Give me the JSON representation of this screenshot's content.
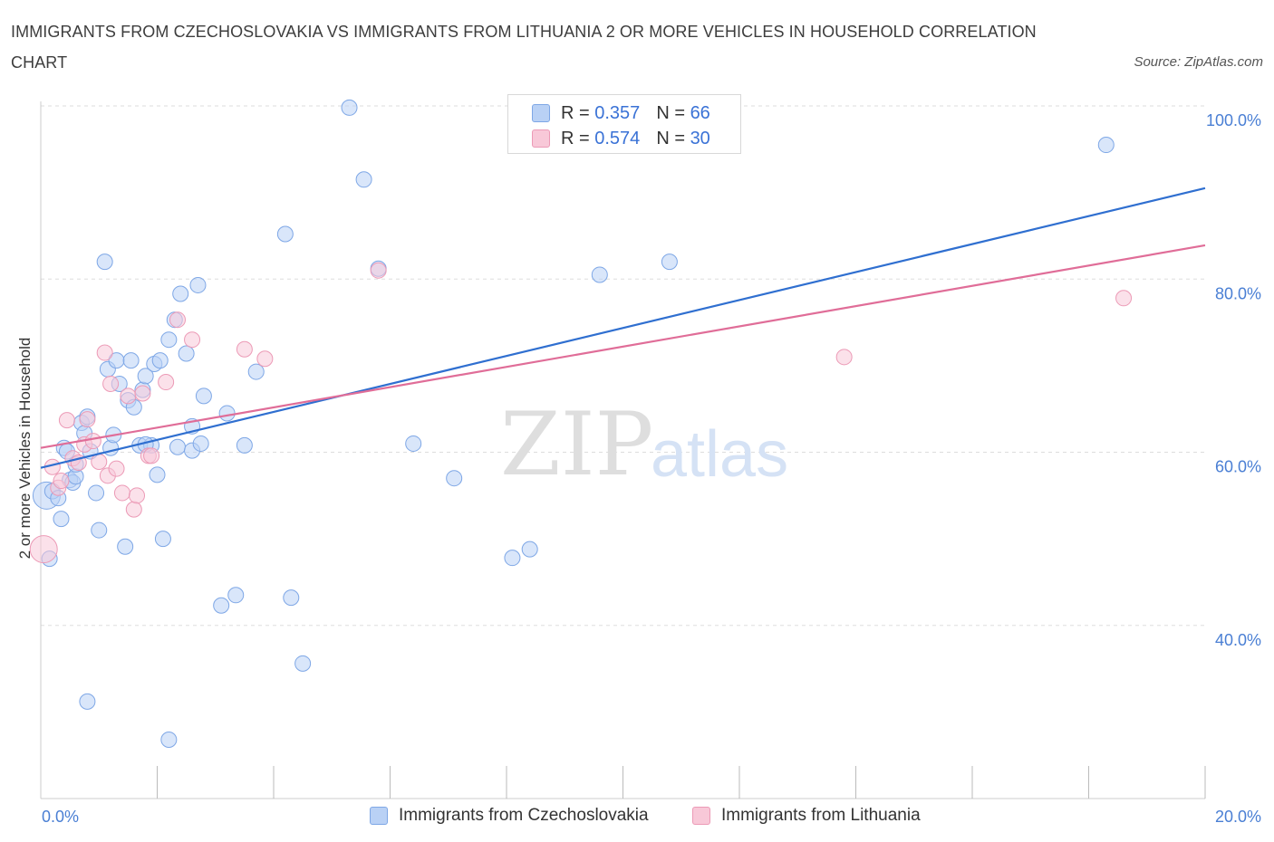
{
  "header": {
    "title": "IMMIGRANTS FROM CZECHOSLOVAKIA VS IMMIGRANTS FROM LITHUANIA 2 OR MORE VEHICLES IN HOUSEHOLD CORRELATION CHART",
    "source": "Source: ZipAtlas.com"
  },
  "legend": {
    "r_label": "R =",
    "n_label": "N =",
    "czech": {
      "r": "0.357",
      "n": "66",
      "name": "Immigrants from Czechoslovakia"
    },
    "lith": {
      "r": "0.574",
      "n": "30",
      "name": "Immigrants from Lithuania"
    }
  },
  "watermark": {
    "zip": "ZIP",
    "atlas": "atlas"
  },
  "colors": {
    "czech_fill": "#b9d1f5",
    "czech_stroke": "#7ea7e6",
    "czech_line": "#2f6fd0",
    "lith_fill": "#f8c8d8",
    "lith_stroke": "#ec9ab6",
    "lith_line": "#e06d98",
    "axis_text": "#4a7fd4",
    "grid": "#dddddd"
  },
  "chart_data": {
    "type": "scatter",
    "title": "IMMIGRANTS FROM CZECHOSLOVAKIA VS IMMIGRANTS FROM LITHUANIA 2 OR MORE VEHICLES IN HOUSEHOLD CORRELATION CHART",
    "xlabel": "",
    "ylabel": "2 or more Vehicles in Household",
    "xlim": [
      0,
      20
    ],
    "ylim": [
      20,
      100
    ],
    "x_tick_labels": [
      "0.0%",
      "20.0%"
    ],
    "y_ticks": [
      40,
      60,
      80,
      100
    ],
    "y_tick_labels": [
      "40.0%",
      "60.0%",
      "80.0%",
      "100.0%"
    ],
    "legend_position": "top-center",
    "series": [
      {
        "name": "Immigrants from Czechoslovakia",
        "r": 0.357,
        "n": 66,
        "trend": {
          "x": [
            0,
            20
          ],
          "y": [
            58.2,
            90.5
          ]
        },
        "points": [
          [
            0.1,
            55.0
          ],
          [
            0.15,
            47.7
          ],
          [
            0.2,
            55.5
          ],
          [
            0.3,
            54.7
          ],
          [
            0.35,
            52.3
          ],
          [
            0.4,
            60.5
          ],
          [
            0.45,
            60.1
          ],
          [
            0.5,
            56.8
          ],
          [
            0.55,
            56.5
          ],
          [
            0.6,
            57.2
          ],
          [
            0.7,
            63.4
          ],
          [
            0.75,
            62.2
          ],
          [
            0.8,
            64.1
          ],
          [
            0.85,
            60.1
          ],
          [
            1.0,
            51.0
          ],
          [
            1.1,
            82.0
          ],
          [
            1.15,
            69.6
          ],
          [
            1.2,
            60.5
          ],
          [
            1.25,
            62.0
          ],
          [
            1.3,
            70.6
          ],
          [
            1.35,
            67.9
          ],
          [
            1.45,
            49.1
          ],
          [
            1.5,
            66.0
          ],
          [
            1.55,
            70.6
          ],
          [
            1.6,
            65.2
          ],
          [
            1.7,
            60.8
          ],
          [
            1.75,
            67.2
          ],
          [
            1.8,
            68.8
          ],
          [
            1.9,
            60.8
          ],
          [
            1.95,
            70.2
          ],
          [
            2.0,
            57.4
          ],
          [
            2.05,
            70.6
          ],
          [
            2.1,
            50.0
          ],
          [
            2.2,
            73.0
          ],
          [
            2.3,
            75.3
          ],
          [
            2.35,
            60.6
          ],
          [
            2.4,
            78.3
          ],
          [
            2.5,
            71.4
          ],
          [
            2.6,
            60.2
          ],
          [
            2.6,
            63.0
          ],
          [
            2.7,
            79.3
          ],
          [
            2.75,
            61.0
          ],
          [
            2.8,
            66.5
          ],
          [
            3.1,
            42.3
          ],
          [
            3.2,
            64.5
          ],
          [
            3.35,
            43.5
          ],
          [
            3.5,
            60.8
          ],
          [
            3.7,
            69.3
          ],
          [
            4.2,
            85.2
          ],
          [
            4.3,
            43.2
          ],
          [
            4.5,
            35.6
          ],
          [
            5.3,
            99.8
          ],
          [
            5.55,
            91.5
          ],
          [
            5.8,
            81.2
          ],
          [
            6.4,
            61.0
          ],
          [
            7.1,
            57.0
          ],
          [
            8.1,
            47.8
          ],
          [
            8.4,
            48.8
          ],
          [
            9.6,
            80.5
          ],
          [
            10.8,
            82.0
          ],
          [
            18.3,
            95.5
          ],
          [
            0.6,
            58.6
          ],
          [
            0.8,
            31.2
          ],
          [
            2.2,
            26.8
          ],
          [
            0.95,
            55.3
          ],
          [
            1.8,
            60.9
          ]
        ]
      },
      {
        "name": "Immigrants from Lithuania",
        "r": 0.574,
        "n": 30,
        "trend": {
          "x": [
            0,
            20
          ],
          "y": [
            60.5,
            83.9
          ]
        },
        "points": [
          [
            0.05,
            48.8
          ],
          [
            0.2,
            58.3
          ],
          [
            0.3,
            55.9
          ],
          [
            0.35,
            56.7
          ],
          [
            0.45,
            63.7
          ],
          [
            0.55,
            59.3
          ],
          [
            0.65,
            58.8
          ],
          [
            0.75,
            60.9
          ],
          [
            0.8,
            63.8
          ],
          [
            0.9,
            61.3
          ],
          [
            1.0,
            58.9
          ],
          [
            1.1,
            71.5
          ],
          [
            1.15,
            57.3
          ],
          [
            1.2,
            67.9
          ],
          [
            1.3,
            58.1
          ],
          [
            1.4,
            55.3
          ],
          [
            1.5,
            66.5
          ],
          [
            1.6,
            53.4
          ],
          [
            1.65,
            55.0
          ],
          [
            1.75,
            66.8
          ],
          [
            1.85,
            59.6
          ],
          [
            1.9,
            59.6
          ],
          [
            2.15,
            68.1
          ],
          [
            2.35,
            75.3
          ],
          [
            2.6,
            73.0
          ],
          [
            3.5,
            71.9
          ],
          [
            3.85,
            70.8
          ],
          [
            5.8,
            81.0
          ],
          [
            13.8,
            71.0
          ],
          [
            18.6,
            77.8
          ]
        ]
      }
    ]
  }
}
